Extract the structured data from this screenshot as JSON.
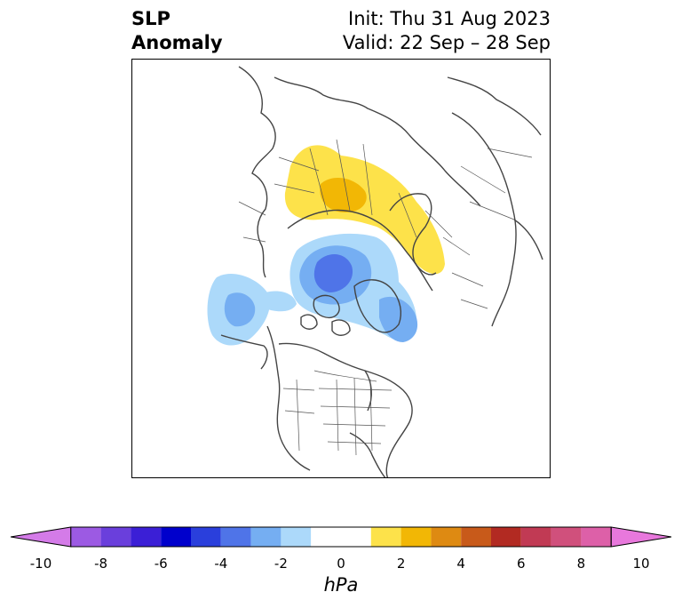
{
  "header": {
    "title_line1": "SLP",
    "title_line2": "Anomaly",
    "init": "Init: Thu 31 Aug 2023",
    "valid": "Valid: 22 Sep – 28 Sep"
  },
  "colorbar": {
    "unit": "hPa",
    "tick_labels": [
      "-10",
      "-8",
      "-6",
      "-4",
      "-2",
      "0",
      "2",
      "4",
      "6",
      "8",
      "10"
    ],
    "bins": [
      {
        "range": "-10 to -9",
        "color": "#d47be8"
      },
      {
        "range": "-9 to -8",
        "color": "#9c5ae3"
      },
      {
        "range": "-8 to -7",
        "color": "#6a3fdc"
      },
      {
        "range": "-7 to -6",
        "color": "#3b1fd6"
      },
      {
        "range": "-6 to -5",
        "color": "#0000cc"
      },
      {
        "range": "-5 to -4",
        "color": "#2a3fdc"
      },
      {
        "range": "-4 to -3",
        "color": "#4f74e8"
      },
      {
        "range": "-3 to -2",
        "color": "#75aef2"
      },
      {
        "range": "-2 to -1",
        "color": "#acd9fa"
      },
      {
        "range": "-1 to 1",
        "color": "#ffffff"
      },
      {
        "range": "1 to 2",
        "color": "#fde24a"
      },
      {
        "range": "2 to 3",
        "color": "#f2b705"
      },
      {
        "range": "3 to 4",
        "color": "#de8a12"
      },
      {
        "range": "4 to 5",
        "color": "#c85a1a"
      },
      {
        "range": "5 to 6",
        "color": "#b22a22"
      },
      {
        "range": "6 to 7",
        "color": "#c13a54"
      },
      {
        "range": "7 to 8",
        "color": "#d0507c"
      },
      {
        "range": "8 to 9",
        "color": "#dd60a8"
      },
      {
        "range": "9 to 10",
        "color": "#e878dc"
      }
    ]
  },
  "map": {
    "projection": "north-polar-stereographic",
    "anomalies": [
      {
        "region": "Scandinavia / Northern Europe",
        "sign": "positive",
        "peak_hpa": 3,
        "colors": [
          "#fde24a",
          "#f2b705"
        ]
      },
      {
        "region": "Arctic Ocean north of Greenland",
        "sign": "negative",
        "peak_hpa": -4,
        "colors": [
          "#acd9fa",
          "#75aef2",
          "#4f74e8"
        ]
      },
      {
        "region": "Baffin Bay / Davis Strait",
        "sign": "negative",
        "peak_hpa": -3,
        "colors": [
          "#acd9fa",
          "#75aef2"
        ]
      },
      {
        "region": "Kamchatka / Bering region",
        "sign": "negative",
        "peak_hpa": -3,
        "colors": [
          "#acd9fa",
          "#75aef2"
        ]
      }
    ]
  }
}
